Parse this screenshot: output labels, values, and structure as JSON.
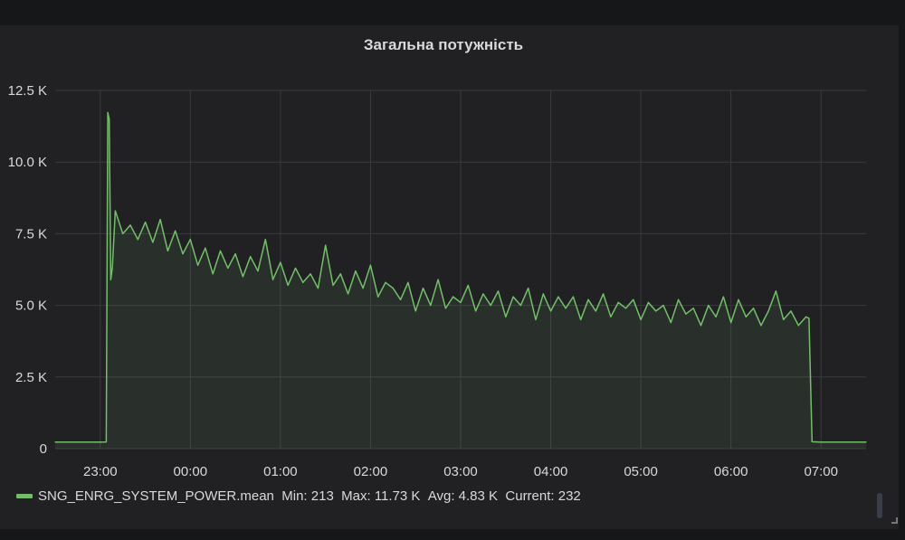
{
  "panel": {
    "title": "Загальна потужність"
  },
  "legend": {
    "series": "SNG_ENRG_SYSTEM_POWER.mean",
    "min": "Min: 213",
    "max": "Max: 11.73 K",
    "avg": "Avg: 4.83 K",
    "current": "Current: 232",
    "color": "#73bf69"
  },
  "chart_data": {
    "type": "area",
    "title": "Загальна потужність",
    "xlabel": "",
    "ylabel": "",
    "xlim": [
      "22:30",
      "07:30"
    ],
    "ylim": [
      0,
      12500
    ],
    "grid": true,
    "legend_placement": "bottom-left",
    "x_ticks": [
      "23:00",
      "00:00",
      "01:00",
      "02:00",
      "03:00",
      "04:00",
      "05:00",
      "06:00",
      "07:00"
    ],
    "y_ticks": [
      "0",
      "2.5 K",
      "5.0 K",
      "7.5 K",
      "10.0 K",
      "12.5 K"
    ],
    "y_tick_values": [
      0,
      2500,
      5000,
      7500,
      10000,
      12500
    ],
    "series": [
      {
        "name": "SNG_ENRG_SYSTEM_POWER.mean",
        "color": "#73bf69",
        "x": [
          "22:30",
          "22:45",
          "23:00",
          "23:04",
          "23:05",
          "23:06",
          "23:07",
          "23:08",
          "23:10",
          "23:15",
          "23:20",
          "23:25",
          "23:30",
          "23:35",
          "23:40",
          "23:45",
          "23:50",
          "23:55",
          "00:00",
          "00:05",
          "00:10",
          "00:15",
          "00:20",
          "00:25",
          "00:30",
          "00:35",
          "00:40",
          "00:45",
          "00:50",
          "00:55",
          "01:00",
          "01:05",
          "01:10",
          "01:15",
          "01:20",
          "01:25",
          "01:30",
          "01:35",
          "01:40",
          "01:45",
          "01:50",
          "01:55",
          "02:00",
          "02:05",
          "02:10",
          "02:15",
          "02:20",
          "02:25",
          "02:30",
          "02:35",
          "02:40",
          "02:45",
          "02:50",
          "02:55",
          "03:00",
          "03:05",
          "03:10",
          "03:15",
          "03:20",
          "03:25",
          "03:30",
          "03:35",
          "03:40",
          "03:45",
          "03:50",
          "03:55",
          "04:00",
          "04:05",
          "04:10",
          "04:15",
          "04:20",
          "04:25",
          "04:30",
          "04:35",
          "04:40",
          "04:45",
          "04:50",
          "04:55",
          "05:00",
          "05:05",
          "05:10",
          "05:15",
          "05:20",
          "05:25",
          "05:30",
          "05:35",
          "05:40",
          "05:45",
          "05:50",
          "05:55",
          "06:00",
          "06:05",
          "06:10",
          "06:15",
          "06:20",
          "06:25",
          "06:30",
          "06:35",
          "06:40",
          "06:45",
          "06:50",
          "06:52",
          "06:54",
          "07:00",
          "07:15",
          "07:30"
        ],
        "y": [
          230,
          228,
          232,
          235,
          11730,
          11500,
          5900,
          6300,
          8300,
          7500,
          7800,
          7300,
          7900,
          7200,
          8000,
          6900,
          7600,
          6800,
          7300,
          6400,
          7000,
          6100,
          6900,
          6300,
          6800,
          6000,
          6700,
          6200,
          7300,
          5900,
          6500,
          5700,
          6300,
          5800,
          6100,
          5600,
          7100,
          5700,
          6100,
          5400,
          6200,
          5600,
          6400,
          5300,
          5800,
          5600,
          5200,
          5800,
          4800,
          5600,
          5000,
          5900,
          4900,
          5300,
          5100,
          5700,
          4800,
          5400,
          5000,
          5500,
          4600,
          5300,
          5000,
          5600,
          4500,
          5400,
          4800,
          5300,
          4900,
          5300,
          4500,
          5200,
          4800,
          5400,
          4600,
          5100,
          4900,
          5200,
          4500,
          5100,
          4800,
          5000,
          4400,
          5200,
          4700,
          4900,
          4300,
          5000,
          4600,
          5300,
          4400,
          5200,
          4600,
          4900,
          4300,
          4800,
          5500,
          4500,
          4800,
          4300,
          4600,
          4550,
          240,
          232,
          230,
          232
        ]
      }
    ]
  }
}
